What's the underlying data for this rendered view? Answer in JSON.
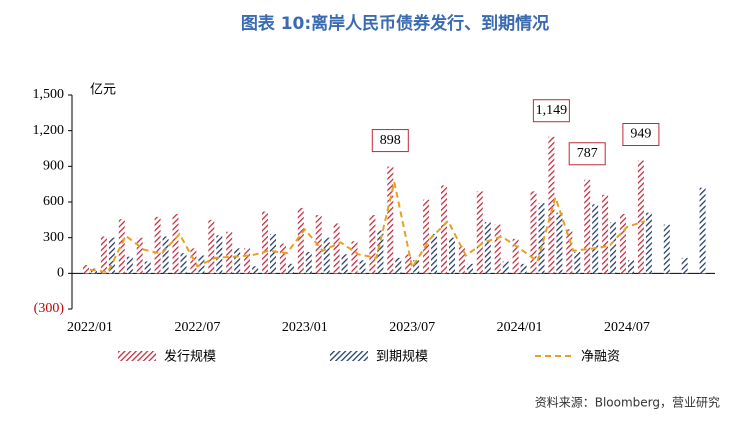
{
  "chart_data": {
    "type": "bar_line",
    "title": "图表 10:离岸人民币债券发行、到期情况",
    "y_axis_label": "亿元",
    "source": "资料来源：Bloomberg，营业研究",
    "categories": [
      "2022/01",
      null,
      null,
      null,
      null,
      null,
      "2022/07",
      null,
      null,
      null,
      null,
      null,
      "2023/01",
      null,
      null,
      null,
      null,
      null,
      "2023/07",
      null,
      null,
      null,
      null,
      null,
      "2024/01",
      null,
      null,
      null,
      null,
      null,
      "2024/07",
      null,
      null,
      null,
      null
    ],
    "series": [
      {
        "name": "发行规模",
        "type": "bar",
        "color": "#c0283c",
        "values": [
          70,
          310,
          455,
          300,
          475,
          500,
          210,
          450,
          350,
          210,
          520,
          250,
          550,
          490,
          420,
          270,
          490,
          898,
          160,
          620,
          740,
          230,
          690,
          410,
          290,
          690,
          1149,
          370,
          787,
          660,
          500,
          949,
          null,
          null,
          null
        ],
        "value_labels": [
          null,
          null,
          null,
          null,
          null,
          null,
          null,
          null,
          null,
          null,
          null,
          null,
          null,
          null,
          null,
          null,
          null,
          "898",
          null,
          null,
          null,
          null,
          null,
          null,
          null,
          null,
          "1,149",
          null,
          "787",
          null,
          null,
          "949",
          null,
          null,
          null
        ]
      },
      {
        "name": "到期规模",
        "type": "bar",
        "color": "#1f3864",
        "values": [
          40,
          300,
          140,
          100,
          310,
          170,
          150,
          320,
          210,
          60,
          330,
          80,
          180,
          300,
          160,
          110,
          360,
          130,
          110,
          330,
          300,
          80,
          430,
          100,
          80,
          590,
          510,
          180,
          580,
          430,
          110,
          510,
          410,
          130,
          720
        ]
      },
      {
        "name": "净融资",
        "type": "line",
        "color": "#e8a020",
        "values": [
          30,
          10,
          315,
          200,
          165,
          330,
          60,
          130,
          140,
          150,
          190,
          170,
          370,
          190,
          260,
          160,
          130,
          768,
          50,
          290,
          440,
          150,
          260,
          310,
          210,
          100,
          639,
          190,
          207,
          230,
          390,
          439,
          null,
          null,
          null
        ]
      }
    ],
    "ylim": [
      -300,
      1500
    ],
    "yticks": [
      {
        "value": -300,
        "label": "(300)"
      },
      0,
      300,
      600,
      900,
      {
        "value": 1200,
        "label": "1,200"
      },
      {
        "value": 1500,
        "label": "1,500"
      }
    ],
    "grid": false
  }
}
